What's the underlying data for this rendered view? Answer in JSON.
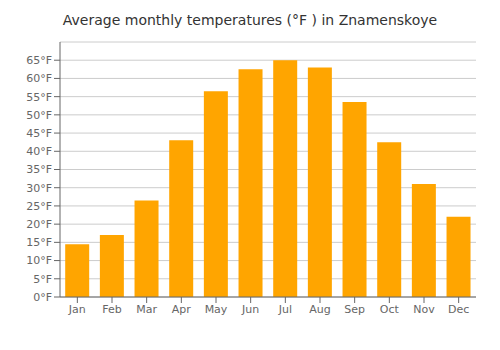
{
  "chart_data": {
    "type": "bar",
    "title": "Average monthly temperatures (°F ) in Znamenskoye",
    "categories": [
      "Jan",
      "Feb",
      "Mar",
      "Apr",
      "May",
      "Jun",
      "Jul",
      "Aug",
      "Sep",
      "Oct",
      "Nov",
      "Dec"
    ],
    "values": [
      14.5,
      17.0,
      26.5,
      43.0,
      56.5,
      62.5,
      65.0,
      63.0,
      53.5,
      42.5,
      31.0,
      22.0
    ],
    "color": "#FFA500",
    "ylim": [
      0,
      70
    ],
    "yticks": [
      {
        "value": 0,
        "label": "0°F"
      },
      {
        "value": 5,
        "label": "5°F"
      },
      {
        "value": 10,
        "label": "10°F"
      },
      {
        "value": 15,
        "label": "15°F"
      },
      {
        "value": 20,
        "label": "20°F"
      },
      {
        "value": 25,
        "label": "25°F"
      },
      {
        "value": 30,
        "label": "30°F"
      },
      {
        "value": 35,
        "label": "35°F"
      },
      {
        "value": 40,
        "label": "40°F"
      },
      {
        "value": 45,
        "label": "45°F"
      },
      {
        "value": 50,
        "label": "50°F"
      },
      {
        "value": 55,
        "label": "55°F"
      },
      {
        "value": 60,
        "label": "60°F"
      },
      {
        "value": 65,
        "label": "65°F"
      }
    ],
    "grid": true
  }
}
